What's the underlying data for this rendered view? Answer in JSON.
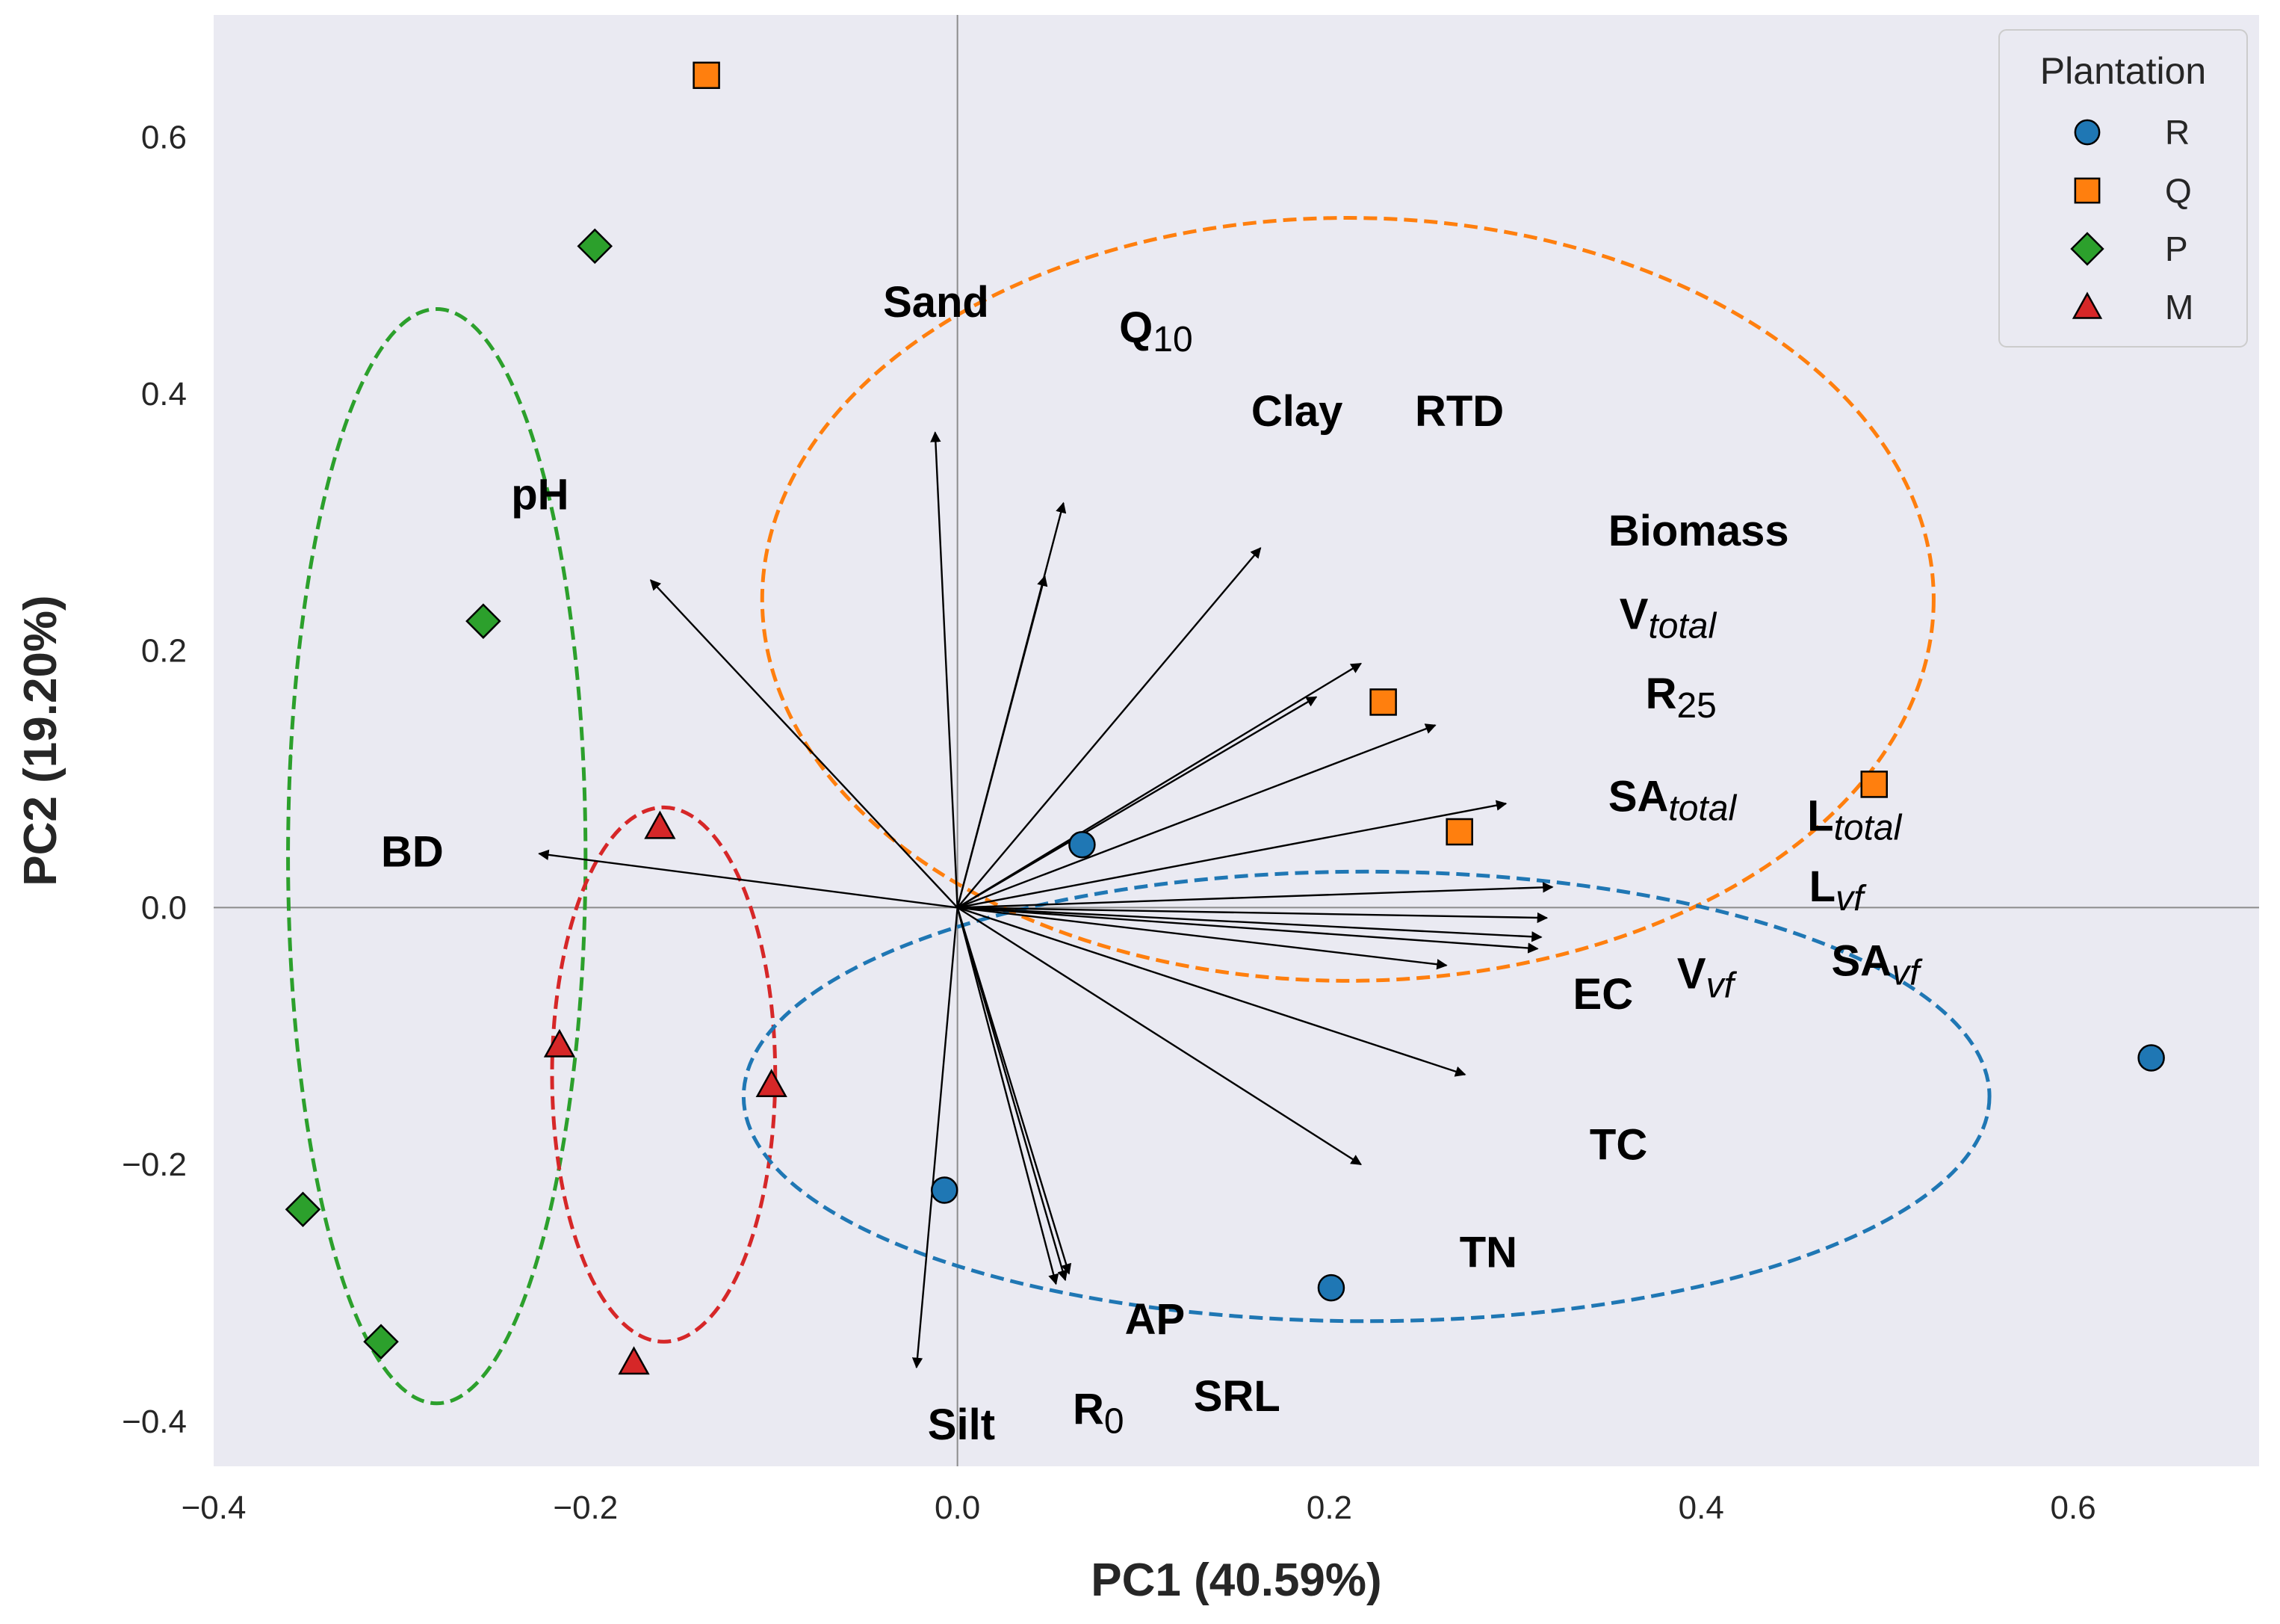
{
  "chart_data": {
    "type": "scatter",
    "subtype": "pca-biplot",
    "xlabel": "PC1 (40.59%)",
    "ylabel": "PC2 (19.20%)",
    "xlim": [
      -0.4,
      0.7
    ],
    "ylim": [
      -0.435,
      0.695
    ],
    "xticks": [
      -0.4,
      -0.2,
      0.0,
      0.2,
      0.4,
      0.6
    ],
    "xtick_labels": [
      "−0.4",
      "−0.2",
      "0.0",
      "0.2",
      "0.4",
      "0.6"
    ],
    "yticks": [
      -0.4,
      -0.2,
      0.0,
      0.2,
      0.4,
      0.6
    ],
    "ytick_labels": [
      "−0.4",
      "−0.2",
      "0.0",
      "0.2",
      "0.4",
      "0.6"
    ],
    "grid": false,
    "background": "#eaeaf2",
    "legend": {
      "title": "Plantation",
      "position": "top-right",
      "entries": [
        {
          "name": "R",
          "marker": "circle",
          "color": "#1f77b4"
        },
        {
          "name": "Q",
          "marker": "square",
          "color": "#ff7f0e"
        },
        {
          "name": "P",
          "marker": "diamond",
          "color": "#2ca02c"
        },
        {
          "name": "M",
          "marker": "triangle",
          "color": "#d62728"
        }
      ]
    },
    "series": [
      {
        "name": "R",
        "color": "#1f77b4",
        "marker": "circle",
        "points": [
          [
            0.067,
            0.049
          ],
          [
            -0.007,
            -0.22
          ],
          [
            0.201,
            -0.296
          ],
          [
            0.642,
            -0.117
          ]
        ]
      },
      {
        "name": "Q",
        "color": "#ff7f0e",
        "marker": "square",
        "points": [
          [
            -0.135,
            0.648
          ],
          [
            0.229,
            0.16
          ],
          [
            0.27,
            0.059
          ],
          [
            0.493,
            0.096
          ]
        ]
      },
      {
        "name": "P",
        "color": "#2ca02c",
        "marker": "diamond",
        "points": [
          [
            -0.195,
            0.515
          ],
          [
            -0.255,
            0.223
          ],
          [
            -0.352,
            -0.235
          ],
          [
            -0.31,
            -0.338
          ]
        ]
      },
      {
        "name": "M",
        "color": "#d62728",
        "marker": "triangle",
        "points": [
          [
            -0.16,
            0.063
          ],
          [
            -0.214,
            -0.107
          ],
          [
            -0.1,
            -0.138
          ],
          [
            -0.174,
            -0.354
          ]
        ]
      }
    ],
    "ellipses": [
      {
        "group": "P",
        "color": "#2ca02c",
        "center": [
          -0.28,
          0.04
        ],
        "semi_axes": [
          0.08,
          0.426
        ]
      },
      {
        "group": "M",
        "color": "#d62728",
        "center": [
          -0.158,
          -0.13
        ],
        "semi_axes": [
          0.06,
          0.208
        ]
      },
      {
        "group": "Q",
        "color": "#ff7f0e",
        "center": [
          0.21,
          0.24
        ],
        "semi_axes": [
          0.315,
          0.297
        ]
      },
      {
        "group": "R",
        "color": "#1f77b4",
        "center": [
          0.22,
          -0.147
        ],
        "semi_axes": [
          0.335,
          0.175
        ]
      }
    ],
    "loadings": [
      {
        "label": "Sand",
        "parts": [
          {
            "t": "Sand"
          }
        ],
        "x": -0.012,
        "y": 0.37,
        "lx": -0.04,
        "ly": 0.46
      },
      {
        "label": "Q10",
        "parts": [
          {
            "t": "Q"
          },
          {
            "t": "10",
            "sub": true
          }
        ],
        "x": 0.057,
        "y": 0.315,
        "lx": 0.087,
        "ly": 0.44
      },
      {
        "label": "Clay",
        "parts": [
          {
            "t": "Clay"
          }
        ],
        "x": 0.047,
        "y": 0.258,
        "lx": 0.158,
        "ly": 0.375
      },
      {
        "label": "RTD",
        "parts": [
          {
            "t": "RTD"
          }
        ],
        "x": 0.163,
        "y": 0.28,
        "lx": 0.246,
        "ly": 0.375
      },
      {
        "label": "pH",
        "parts": [
          {
            "t": "pH"
          }
        ],
        "x": -0.165,
        "y": 0.255,
        "lx": -0.24,
        "ly": 0.31
      },
      {
        "label": "Biomass",
        "parts": [
          {
            "t": "Biomass"
          }
        ],
        "x": 0.217,
        "y": 0.19,
        "lx": 0.35,
        "ly": 0.282
      },
      {
        "label": "Vtotal",
        "parts": [
          {
            "t": "V"
          },
          {
            "t": "total",
            "sub": true,
            "italic": true
          }
        ],
        "x": 0.193,
        "y": 0.164,
        "lx": 0.356,
        "ly": 0.217
      },
      {
        "label": "R25",
        "parts": [
          {
            "t": "R"
          },
          {
            "t": "25",
            "sub": true
          }
        ],
        "x": 0.257,
        "y": 0.142,
        "lx": 0.37,
        "ly": 0.155
      },
      {
        "label": "SAtotal",
        "parts": [
          {
            "t": "SA"
          },
          {
            "t": "total",
            "sub": true,
            "italic": true
          }
        ],
        "x": 0.295,
        "y": 0.081,
        "lx": 0.35,
        "ly": 0.075
      },
      {
        "label": "Ltotal",
        "parts": [
          {
            "t": "L"
          },
          {
            "t": "total",
            "sub": true,
            "italic": true
          }
        ],
        "x": 0.32,
        "y": 0.016,
        "lx": 0.457,
        "ly": 0.06
      },
      {
        "label": "Lvf",
        "parts": [
          {
            "t": "L"
          },
          {
            "t": "vf",
            "sub": true,
            "italic": true
          }
        ],
        "x": 0.317,
        "y": -0.008,
        "lx": 0.458,
        "ly": 0.005
      },
      {
        "label": "SAvf",
        "parts": [
          {
            "t": "SA"
          },
          {
            "t": "vf",
            "sub": true,
            "italic": true
          }
        ],
        "x": 0.314,
        "y": -0.023,
        "lx": 0.47,
        "ly": -0.053
      },
      {
        "label": "Vvf",
        "parts": [
          {
            "t": "V"
          },
          {
            "t": "vf",
            "sub": true,
            "italic": true
          }
        ],
        "x": 0.312,
        "y": -0.032,
        "lx": 0.387,
        "ly": -0.063
      },
      {
        "label": "EC",
        "parts": [
          {
            "t": "EC"
          }
        ],
        "x": 0.263,
        "y": -0.045,
        "lx": 0.331,
        "ly": -0.079
      },
      {
        "label": "TC",
        "parts": [
          {
            "t": "TC"
          }
        ],
        "x": 0.273,
        "y": -0.13,
        "lx": 0.34,
        "ly": -0.196
      },
      {
        "label": "TN",
        "parts": [
          {
            "t": "TN"
          }
        ],
        "x": 0.217,
        "y": -0.2,
        "lx": 0.27,
        "ly": -0.28
      },
      {
        "label": "AP",
        "parts": [
          {
            "t": "AP"
          }
        ],
        "x": 0.058,
        "y": -0.29,
        "lx": 0.09,
        "ly": -0.332
      },
      {
        "label": "R0",
        "parts": [
          {
            "t": "R"
          },
          {
            "t": "0",
            "sub": true
          }
        ],
        "x": 0.06,
        "y": -0.285,
        "lx": 0.062,
        "ly": -0.402
      },
      {
        "label": "SRL",
        "parts": [
          {
            "t": "SRL"
          }
        ],
        "x": 0.053,
        "y": -0.293,
        "lx": 0.127,
        "ly": -0.392
      },
      {
        "label": "Silt",
        "parts": [
          {
            "t": "Silt"
          }
        ],
        "x": -0.022,
        "y": -0.358,
        "lx": -0.016,
        "ly": -0.414
      },
      {
        "label": "BD",
        "parts": [
          {
            "t": "BD"
          }
        ],
        "x": -0.225,
        "y": 0.042,
        "lx": -0.31,
        "ly": 0.032
      }
    ]
  }
}
